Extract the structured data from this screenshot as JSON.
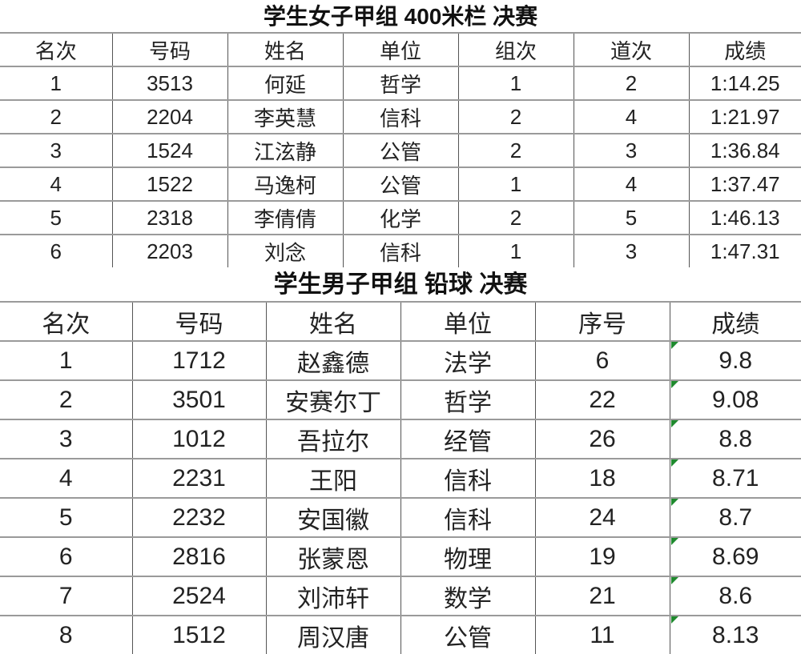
{
  "table1": {
    "title": "学生女子甲组 400米栏 决赛",
    "headers": [
      "名次",
      "号码",
      "姓名",
      "单位",
      "组次",
      "道次",
      "成绩"
    ],
    "rows": [
      [
        "1",
        "3513",
        "何延",
        "哲学",
        "1",
        "2",
        "1:14.25"
      ],
      [
        "2",
        "2204",
        "李英慧",
        "信科",
        "2",
        "4",
        "1:21.97"
      ],
      [
        "3",
        "1524",
        "江泫静",
        "公管",
        "2",
        "3",
        "1:36.84"
      ],
      [
        "4",
        "1522",
        "马逸柯",
        "公管",
        "1",
        "4",
        "1:37.47"
      ],
      [
        "5",
        "2318",
        "李倩倩",
        "化学",
        "2",
        "5",
        "1:46.13"
      ],
      [
        "6",
        "2203",
        "刘念",
        "信科",
        "1",
        "3",
        "1:47.31"
      ]
    ]
  },
  "table2": {
    "title": "学生男子甲组 铅球 决赛",
    "headers": [
      "名次",
      "号码",
      "姓名",
      "单位",
      "序号",
      "成绩"
    ],
    "rows": [
      [
        "1",
        "1712",
        "赵鑫德",
        "法学",
        "6",
        "9.8"
      ],
      [
        "2",
        "3501",
        "安赛尔丁",
        "哲学",
        "22",
        "9.08"
      ],
      [
        "3",
        "1012",
        "吾拉尔",
        "经管",
        "26",
        "8.8"
      ],
      [
        "4",
        "2231",
        "王阳",
        "信科",
        "18",
        "8.71"
      ],
      [
        "5",
        "2232",
        "安国徽",
        "信科",
        "24",
        "8.7"
      ],
      [
        "6",
        "2816",
        "张蒙恩",
        "物理",
        "19",
        "8.69"
      ],
      [
        "7",
        "2524",
        "刘沛轩",
        "数学",
        "21",
        "8.6"
      ],
      [
        "8",
        "1512",
        "周汉唐",
        "公管",
        "11",
        "8.13"
      ]
    ],
    "flag_color": "#1f8a2e"
  }
}
